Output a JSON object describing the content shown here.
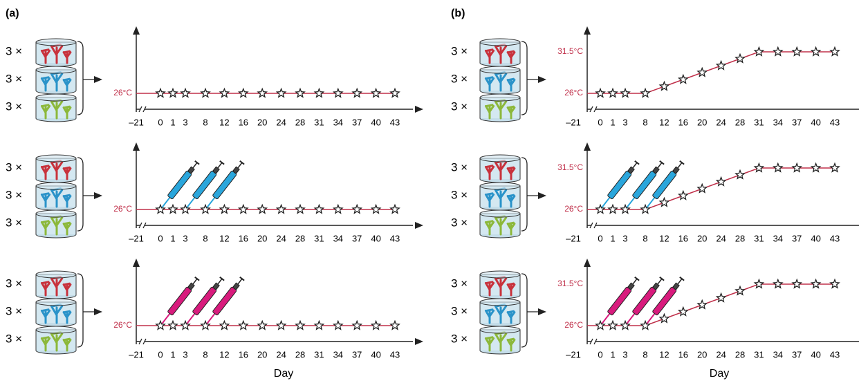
{
  "panels": [
    {
      "label": "(a)",
      "x_axis_label": "Day",
      "rows": [
        {
          "replicates": [
            "3 ×",
            "3 ×",
            "3 ×"
          ],
          "temperature_labels": [
            "26°C"
          ],
          "day_ticks": [
            "–21",
            "0",
            "1",
            "3",
            "8",
            "12",
            "16",
            "20",
            "24",
            "28",
            "31",
            "34",
            "37",
            "40",
            "43"
          ]
        },
        {
          "replicates": [
            "3 ×",
            "3 ×",
            "3 ×"
          ],
          "temperature_labels": [
            "26°C"
          ],
          "day_ticks": [
            "–21",
            "0",
            "1",
            "3",
            "8",
            "12",
            "16",
            "20",
            "24",
            "28",
            "31",
            "34",
            "37",
            "40",
            "43"
          ]
        },
        {
          "replicates": [
            "3 ×",
            "3 ×",
            "3 ×"
          ],
          "temperature_labels": [
            "26°C"
          ],
          "day_ticks": [
            "–21",
            "0",
            "1",
            "3",
            "8",
            "12",
            "16",
            "20",
            "24",
            "28",
            "31",
            "34",
            "37",
            "40",
            "43"
          ]
        }
      ]
    },
    {
      "label": "(b)",
      "x_axis_label": "Day",
      "rows": [
        {
          "replicates": [
            "3 ×",
            "3 ×",
            "3 ×"
          ],
          "temperature_labels": [
            "31.5°C",
            "26°C"
          ],
          "day_ticks": [
            "–21",
            "0",
            "1",
            "3",
            "8",
            "12",
            "16",
            "20",
            "24",
            "28",
            "31",
            "34",
            "37",
            "40",
            "43"
          ]
        },
        {
          "replicates": [
            "3 ×",
            "3 ×",
            "3 ×"
          ],
          "temperature_labels": [
            "31.5°C",
            "26°C"
          ],
          "day_ticks": [
            "–21",
            "0",
            "1",
            "3",
            "8",
            "12",
            "16",
            "20",
            "24",
            "28",
            "31",
            "34",
            "37",
            "40",
            "43"
          ]
        },
        {
          "replicates": [
            "3 ×",
            "3 ×",
            "3 ×"
          ],
          "temperature_labels": [
            "31.5°C",
            "26°C"
          ],
          "day_ticks": [
            "–21",
            "0",
            "1",
            "3",
            "8",
            "12",
            "16",
            "20",
            "24",
            "28",
            "31",
            "34",
            "37",
            "40",
            "43"
          ]
        }
      ]
    }
  ]
}
